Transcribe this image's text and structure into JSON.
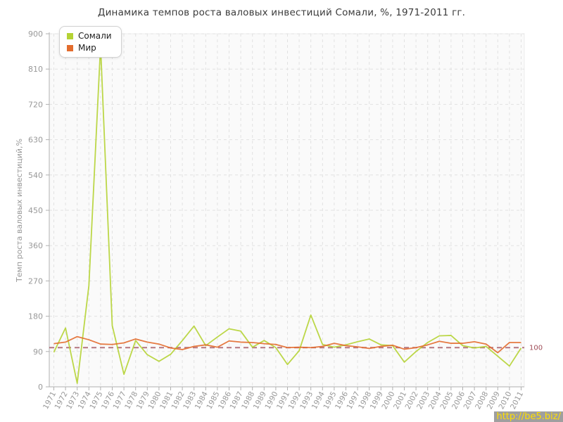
{
  "watermark": {
    "text": "http://be5.biz/"
  },
  "chart_data": {
    "type": "line",
    "title": "Динамика темпов роста валовых инвестиций Сомали, %, 1971-2011 гг.",
    "xlabel": "",
    "ylabel": "Темп роста валовых инвестиций,%",
    "ylim": [
      0,
      900
    ],
    "ytick_step": 90,
    "grid": true,
    "legend_position": "top-left",
    "guide": {
      "value": 100,
      "label": "100",
      "color": "#9e4a55"
    },
    "categories": [
      "1971",
      "1972",
      "1973",
      "1974",
      "1975",
      "1976",
      "1977",
      "1978",
      "1979",
      "1980",
      "1981",
      "1982",
      "1983",
      "1984",
      "1985",
      "1986",
      "1987",
      "1988",
      "1989",
      "1990",
      "1991",
      "1992",
      "1993",
      "1994",
      "1995",
      "1996",
      "1997",
      "1998",
      "1999",
      "2000",
      "2001",
      "2002",
      "2003",
      "2004",
      "2005",
      "2006",
      "2007",
      "2008",
      "2009",
      "2010",
      "2011"
    ],
    "series": [
      {
        "key": "somalia",
        "name": "Сомали",
        "color": "#b5d334",
        "values": [
          88,
          150,
          9,
          258,
          870,
          156,
          32,
          118,
          82,
          65,
          83,
          118,
          155,
          105,
          127,
          148,
          142,
          101,
          118,
          100,
          57,
          92,
          183,
          108,
          101,
          107,
          115,
          122,
          107,
          105,
          63,
          90,
          113,
          130,
          131,
          105,
          99,
          103,
          78,
          53,
          99
        ]
      },
      {
        "key": "world",
        "name": "Мир",
        "color": "#e36c2d",
        "values": [
          110,
          114,
          128,
          120,
          109,
          108,
          112,
          122,
          114,
          109,
          99,
          95,
          103,
          107,
          101,
          117,
          114,
          113,
          110,
          108,
          100,
          101,
          100,
          103,
          111,
          105,
          102,
          98,
          103,
          106,
          96,
          100,
          107,
          116,
          111,
          111,
          115,
          109,
          87,
          113,
          113
        ]
      }
    ],
    "colors": {
      "grid": "#e2e2e2",
      "axis": "#b0b0b0",
      "tick_label": "#999999",
      "plot_bg": "#fafafa",
      "title_text": "#3c3c3c"
    }
  }
}
